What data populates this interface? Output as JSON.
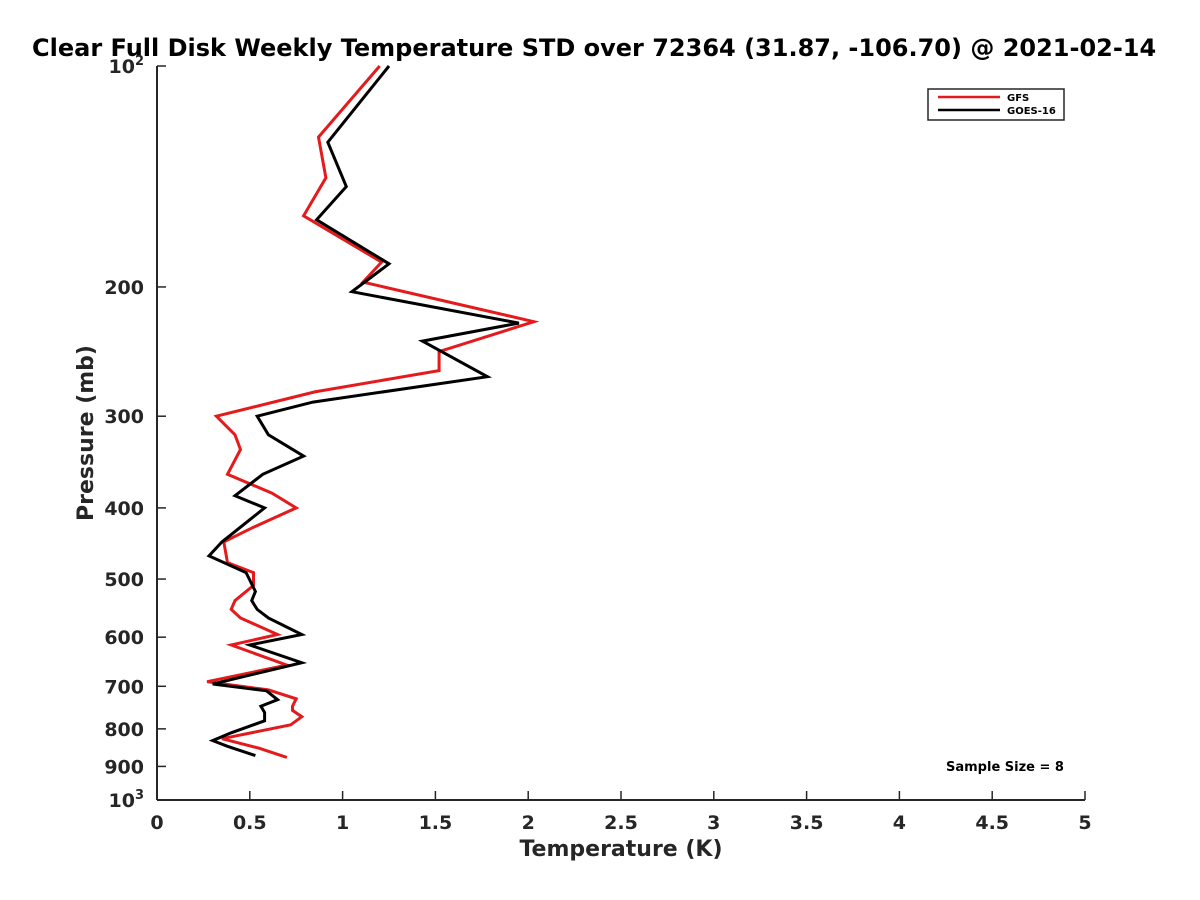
{
  "chart_data": {
    "type": "line",
    "title": "Clear Full Disk Weekly Temperature STD over 72364 (31.87, -106.70) @ 2021-02-14",
    "xlabel": "Temperature (K)",
    "ylabel": "Pressure (mb)",
    "xlim": [
      0,
      5
    ],
    "ylim": [
      1000,
      100
    ],
    "y_scale": "log",
    "y_reversed": true,
    "grid": false,
    "legend_position": "top-right",
    "x_ticks": [
      0,
      0.5,
      1,
      1.5,
      2,
      2.5,
      3,
      3.5,
      4,
      4.5,
      5
    ],
    "x_tick_labels": [
      "0",
      "0.5",
      "1",
      "1.5",
      "2",
      "2.5",
      "3",
      "3.5",
      "4",
      "4.5",
      "5"
    ],
    "y_ticks": [
      {
        "value": 100,
        "label": "10",
        "sup": "2"
      },
      {
        "value": 200,
        "label": "200",
        "sup": ""
      },
      {
        "value": 300,
        "label": "300",
        "sup": ""
      },
      {
        "value": 400,
        "label": "400",
        "sup": ""
      },
      {
        "value": 500,
        "label": "500",
        "sup": ""
      },
      {
        "value": 600,
        "label": "600",
        "sup": ""
      },
      {
        "value": 700,
        "label": "700",
        "sup": ""
      },
      {
        "value": 800,
        "label": "800",
        "sup": ""
      },
      {
        "value": 900,
        "label": "900",
        "sup": ""
      },
      {
        "value": 1000,
        "label": "10",
        "sup": "3"
      }
    ],
    "annotation": "Sample Size = 8",
    "series": [
      {
        "name": "GFS",
        "color": "#e41a1c",
        "points": [
          [
            1.2,
            100
          ],
          [
            0.87,
            125
          ],
          [
            0.91,
            142
          ],
          [
            0.79,
            160
          ],
          [
            1.21,
            185
          ],
          [
            1.11,
            197
          ],
          [
            2.03,
            223
          ],
          [
            1.52,
            245
          ],
          [
            1.52,
            260
          ],
          [
            0.85,
            278
          ],
          [
            0.32,
            300
          ],
          [
            0.42,
            318
          ],
          [
            0.45,
            333
          ],
          [
            0.38,
            360
          ],
          [
            0.62,
            382
          ],
          [
            0.75,
            400
          ],
          [
            0.52,
            425
          ],
          [
            0.36,
            445
          ],
          [
            0.38,
            475
          ],
          [
            0.52,
            490
          ],
          [
            0.52,
            510
          ],
          [
            0.42,
            535
          ],
          [
            0.4,
            550
          ],
          [
            0.45,
            565
          ],
          [
            0.65,
            595
          ],
          [
            0.4,
            615
          ],
          [
            0.7,
            655
          ],
          [
            0.27,
            690
          ],
          [
            0.6,
            708
          ],
          [
            0.75,
            728
          ],
          [
            0.73,
            745
          ],
          [
            0.73,
            755
          ],
          [
            0.78,
            770
          ],
          [
            0.72,
            790
          ],
          [
            0.35,
            825
          ],
          [
            0.55,
            850
          ],
          [
            0.7,
            875
          ]
        ]
      },
      {
        "name": "GOES-16",
        "color": "#000000",
        "points": [
          [
            1.25,
            100
          ],
          [
            0.92,
            127
          ],
          [
            1.02,
            146
          ],
          [
            0.86,
            162
          ],
          [
            1.25,
            186
          ],
          [
            1.05,
            203
          ],
          [
            1.95,
            224
          ],
          [
            1.43,
            237
          ],
          [
            1.78,
            265
          ],
          [
            0.84,
            287
          ],
          [
            0.54,
            300
          ],
          [
            0.6,
            318
          ],
          [
            0.79,
            340
          ],
          [
            0.57,
            360
          ],
          [
            0.42,
            385
          ],
          [
            0.58,
            400
          ],
          [
            0.35,
            445
          ],
          [
            0.28,
            465
          ],
          [
            0.48,
            490
          ],
          [
            0.53,
            520
          ],
          [
            0.51,
            535
          ],
          [
            0.54,
            550
          ],
          [
            0.6,
            565
          ],
          [
            0.78,
            595
          ],
          [
            0.5,
            615
          ],
          [
            0.78,
            650
          ],
          [
            0.3,
            695
          ],
          [
            0.59,
            710
          ],
          [
            0.65,
            730
          ],
          [
            0.56,
            745
          ],
          [
            0.58,
            760
          ],
          [
            0.58,
            780
          ],
          [
            0.4,
            810
          ],
          [
            0.3,
            830
          ],
          [
            0.38,
            845
          ],
          [
            0.53,
            870
          ]
        ]
      }
    ]
  }
}
